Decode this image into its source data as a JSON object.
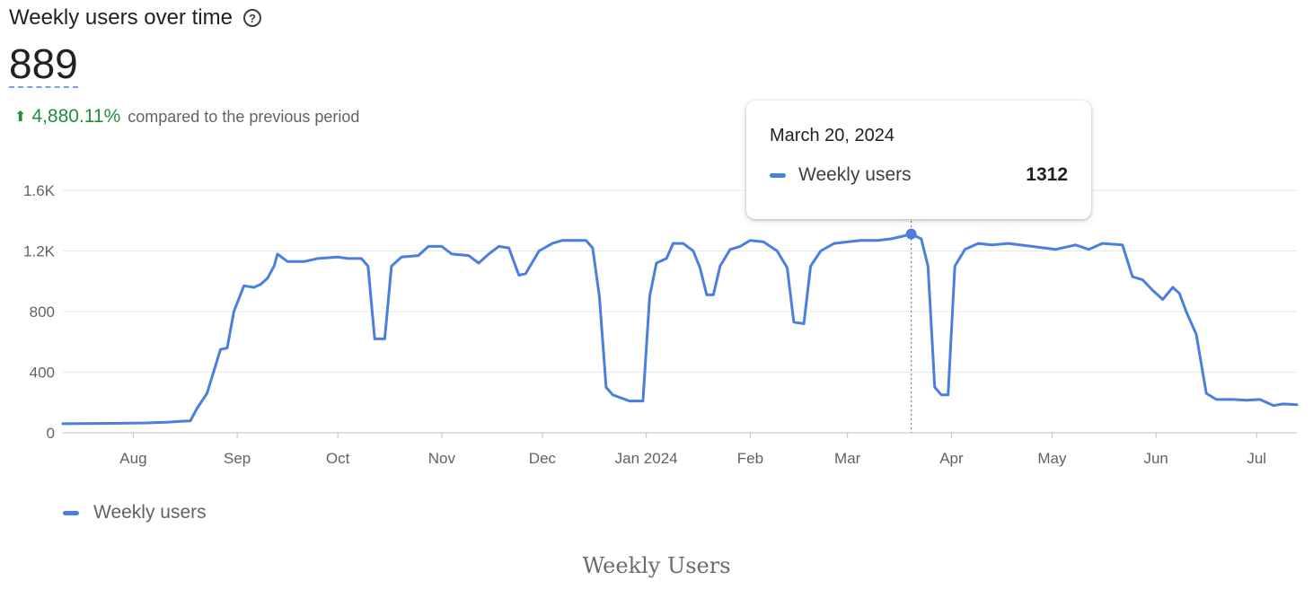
{
  "header": {
    "title": "Weekly users over time",
    "help_icon": "help-circle-icon",
    "value": "889",
    "delta_percent": "4,880.11%",
    "delta_text": "compared to the previous period",
    "delta_icon": "arrow-up-icon"
  },
  "tooltip": {
    "date": "March 20, 2024",
    "series_name": "Weekly users",
    "value": "1312"
  },
  "legend": {
    "label": "Weekly users"
  },
  "caption": "Weekly Users",
  "colors": {
    "line": "#4a7fe0",
    "increase": "#1e8e3e",
    "grid": "#e8eaed"
  },
  "chart_data": {
    "type": "line",
    "title": "Weekly users over time",
    "xlabel": "",
    "ylabel": "",
    "ylim": [
      0,
      1600
    ],
    "yticks": [
      {
        "value": 0,
        "label": "0"
      },
      {
        "value": 400,
        "label": "400"
      },
      {
        "value": 800,
        "label": "800"
      },
      {
        "value": 1200,
        "label": "1.2K"
      },
      {
        "value": 1600,
        "label": "1.6K"
      }
    ],
    "xlim": [
      "2023-07-11",
      "2024-07-13"
    ],
    "xticks": [
      {
        "date": "2023-08-01",
        "label": "Aug"
      },
      {
        "date": "2023-09-01",
        "label": "Sep"
      },
      {
        "date": "2023-10-01",
        "label": "Oct"
      },
      {
        "date": "2023-11-01",
        "label": "Nov"
      },
      {
        "date": "2023-12-01",
        "label": "Dec"
      },
      {
        "date": "2024-01-01",
        "label": "Jan 2024"
      },
      {
        "date": "2024-02-01",
        "label": "Feb"
      },
      {
        "date": "2024-03-01",
        "label": "Mar"
      },
      {
        "date": "2024-04-01",
        "label": "Apr"
      },
      {
        "date": "2024-05-01",
        "label": "May"
      },
      {
        "date": "2024-06-01",
        "label": "Jun"
      },
      {
        "date": "2024-07-01",
        "label": "Jul"
      }
    ],
    "highlight": {
      "date": "2024-03-20",
      "value": 1312
    },
    "series": [
      {
        "name": "Weekly users",
        "points": [
          [
            "2023-07-11",
            60
          ],
          [
            "2023-07-25",
            62
          ],
          [
            "2023-08-05",
            65
          ],
          [
            "2023-08-11",
            70
          ],
          [
            "2023-08-15",
            75
          ],
          [
            "2023-08-18",
            78
          ],
          [
            "2023-08-20",
            160
          ],
          [
            "2023-08-23",
            260
          ],
          [
            "2023-08-27",
            550
          ],
          [
            "2023-08-29",
            560
          ],
          [
            "2023-08-31",
            800
          ],
          [
            "2023-09-03",
            970
          ],
          [
            "2023-09-06",
            960
          ],
          [
            "2023-09-08",
            980
          ],
          [
            "2023-09-10",
            1020
          ],
          [
            "2023-09-12",
            1100
          ],
          [
            "2023-09-13",
            1180
          ],
          [
            "2023-09-16",
            1130
          ],
          [
            "2023-09-21",
            1130
          ],
          [
            "2023-09-25",
            1150
          ],
          [
            "2023-10-01",
            1160
          ],
          [
            "2023-10-04",
            1150
          ],
          [
            "2023-10-08",
            1150
          ],
          [
            "2023-10-10",
            1100
          ],
          [
            "2023-10-12",
            620
          ],
          [
            "2023-10-15",
            620
          ],
          [
            "2023-10-17",
            1100
          ],
          [
            "2023-10-20",
            1160
          ],
          [
            "2023-10-25",
            1170
          ],
          [
            "2023-10-28",
            1230
          ],
          [
            "2023-11-01",
            1230
          ],
          [
            "2023-11-04",
            1180
          ],
          [
            "2023-11-09",
            1170
          ],
          [
            "2023-11-12",
            1120
          ],
          [
            "2023-11-15",
            1180
          ],
          [
            "2023-11-18",
            1230
          ],
          [
            "2023-11-21",
            1220
          ],
          [
            "2023-11-24",
            1040
          ],
          [
            "2023-11-26",
            1050
          ],
          [
            "2023-11-30",
            1200
          ],
          [
            "2023-12-04",
            1250
          ],
          [
            "2023-12-07",
            1270
          ],
          [
            "2023-12-11",
            1270
          ],
          [
            "2023-12-14",
            1270
          ],
          [
            "2023-12-16",
            1220
          ],
          [
            "2023-12-18",
            900
          ],
          [
            "2023-12-20",
            300
          ],
          [
            "2023-12-22",
            250
          ],
          [
            "2023-12-27",
            210
          ],
          [
            "2023-12-31",
            210
          ],
          [
            "2024-01-02",
            900
          ],
          [
            "2024-01-04",
            1120
          ],
          [
            "2024-01-07",
            1150
          ],
          [
            "2024-01-09",
            1250
          ],
          [
            "2024-01-12",
            1250
          ],
          [
            "2024-01-15",
            1200
          ],
          [
            "2024-01-17",
            1090
          ],
          [
            "2024-01-19",
            910
          ],
          [
            "2024-01-21",
            910
          ],
          [
            "2024-01-23",
            1100
          ],
          [
            "2024-01-26",
            1210
          ],
          [
            "2024-01-29",
            1230
          ],
          [
            "2024-02-01",
            1270
          ],
          [
            "2024-02-05",
            1260
          ],
          [
            "2024-02-09",
            1200
          ],
          [
            "2024-02-12",
            1090
          ],
          [
            "2024-02-14",
            730
          ],
          [
            "2024-02-17",
            720
          ],
          [
            "2024-02-19",
            1100
          ],
          [
            "2024-02-22",
            1200
          ],
          [
            "2024-02-26",
            1250
          ],
          [
            "2024-03-01",
            1260
          ],
          [
            "2024-03-05",
            1270
          ],
          [
            "2024-03-10",
            1270
          ],
          [
            "2024-03-14",
            1280
          ],
          [
            "2024-03-18",
            1300
          ],
          [
            "2024-03-20",
            1312
          ],
          [
            "2024-03-23",
            1280
          ],
          [
            "2024-03-25",
            1100
          ],
          [
            "2024-03-27",
            300
          ],
          [
            "2024-03-29",
            250
          ],
          [
            "2024-03-31",
            250
          ],
          [
            "2024-04-02",
            1100
          ],
          [
            "2024-04-05",
            1210
          ],
          [
            "2024-04-09",
            1250
          ],
          [
            "2024-04-13",
            1240
          ],
          [
            "2024-04-18",
            1250
          ],
          [
            "2024-04-25",
            1230
          ],
          [
            "2024-05-02",
            1210
          ],
          [
            "2024-05-08",
            1240
          ],
          [
            "2024-05-12",
            1210
          ],
          [
            "2024-05-16",
            1250
          ],
          [
            "2024-05-22",
            1240
          ],
          [
            "2024-05-25",
            1030
          ],
          [
            "2024-05-28",
            1010
          ],
          [
            "2024-05-31",
            940
          ],
          [
            "2024-06-03",
            880
          ],
          [
            "2024-06-06",
            960
          ],
          [
            "2024-06-08",
            920
          ],
          [
            "2024-06-10",
            800
          ],
          [
            "2024-06-13",
            650
          ],
          [
            "2024-06-16",
            260
          ],
          [
            "2024-06-19",
            220
          ],
          [
            "2024-06-24",
            220
          ],
          [
            "2024-06-28",
            215
          ],
          [
            "2024-07-02",
            220
          ],
          [
            "2024-07-06",
            180
          ],
          [
            "2024-07-09",
            190
          ],
          [
            "2024-07-13",
            185
          ]
        ]
      }
    ]
  }
}
